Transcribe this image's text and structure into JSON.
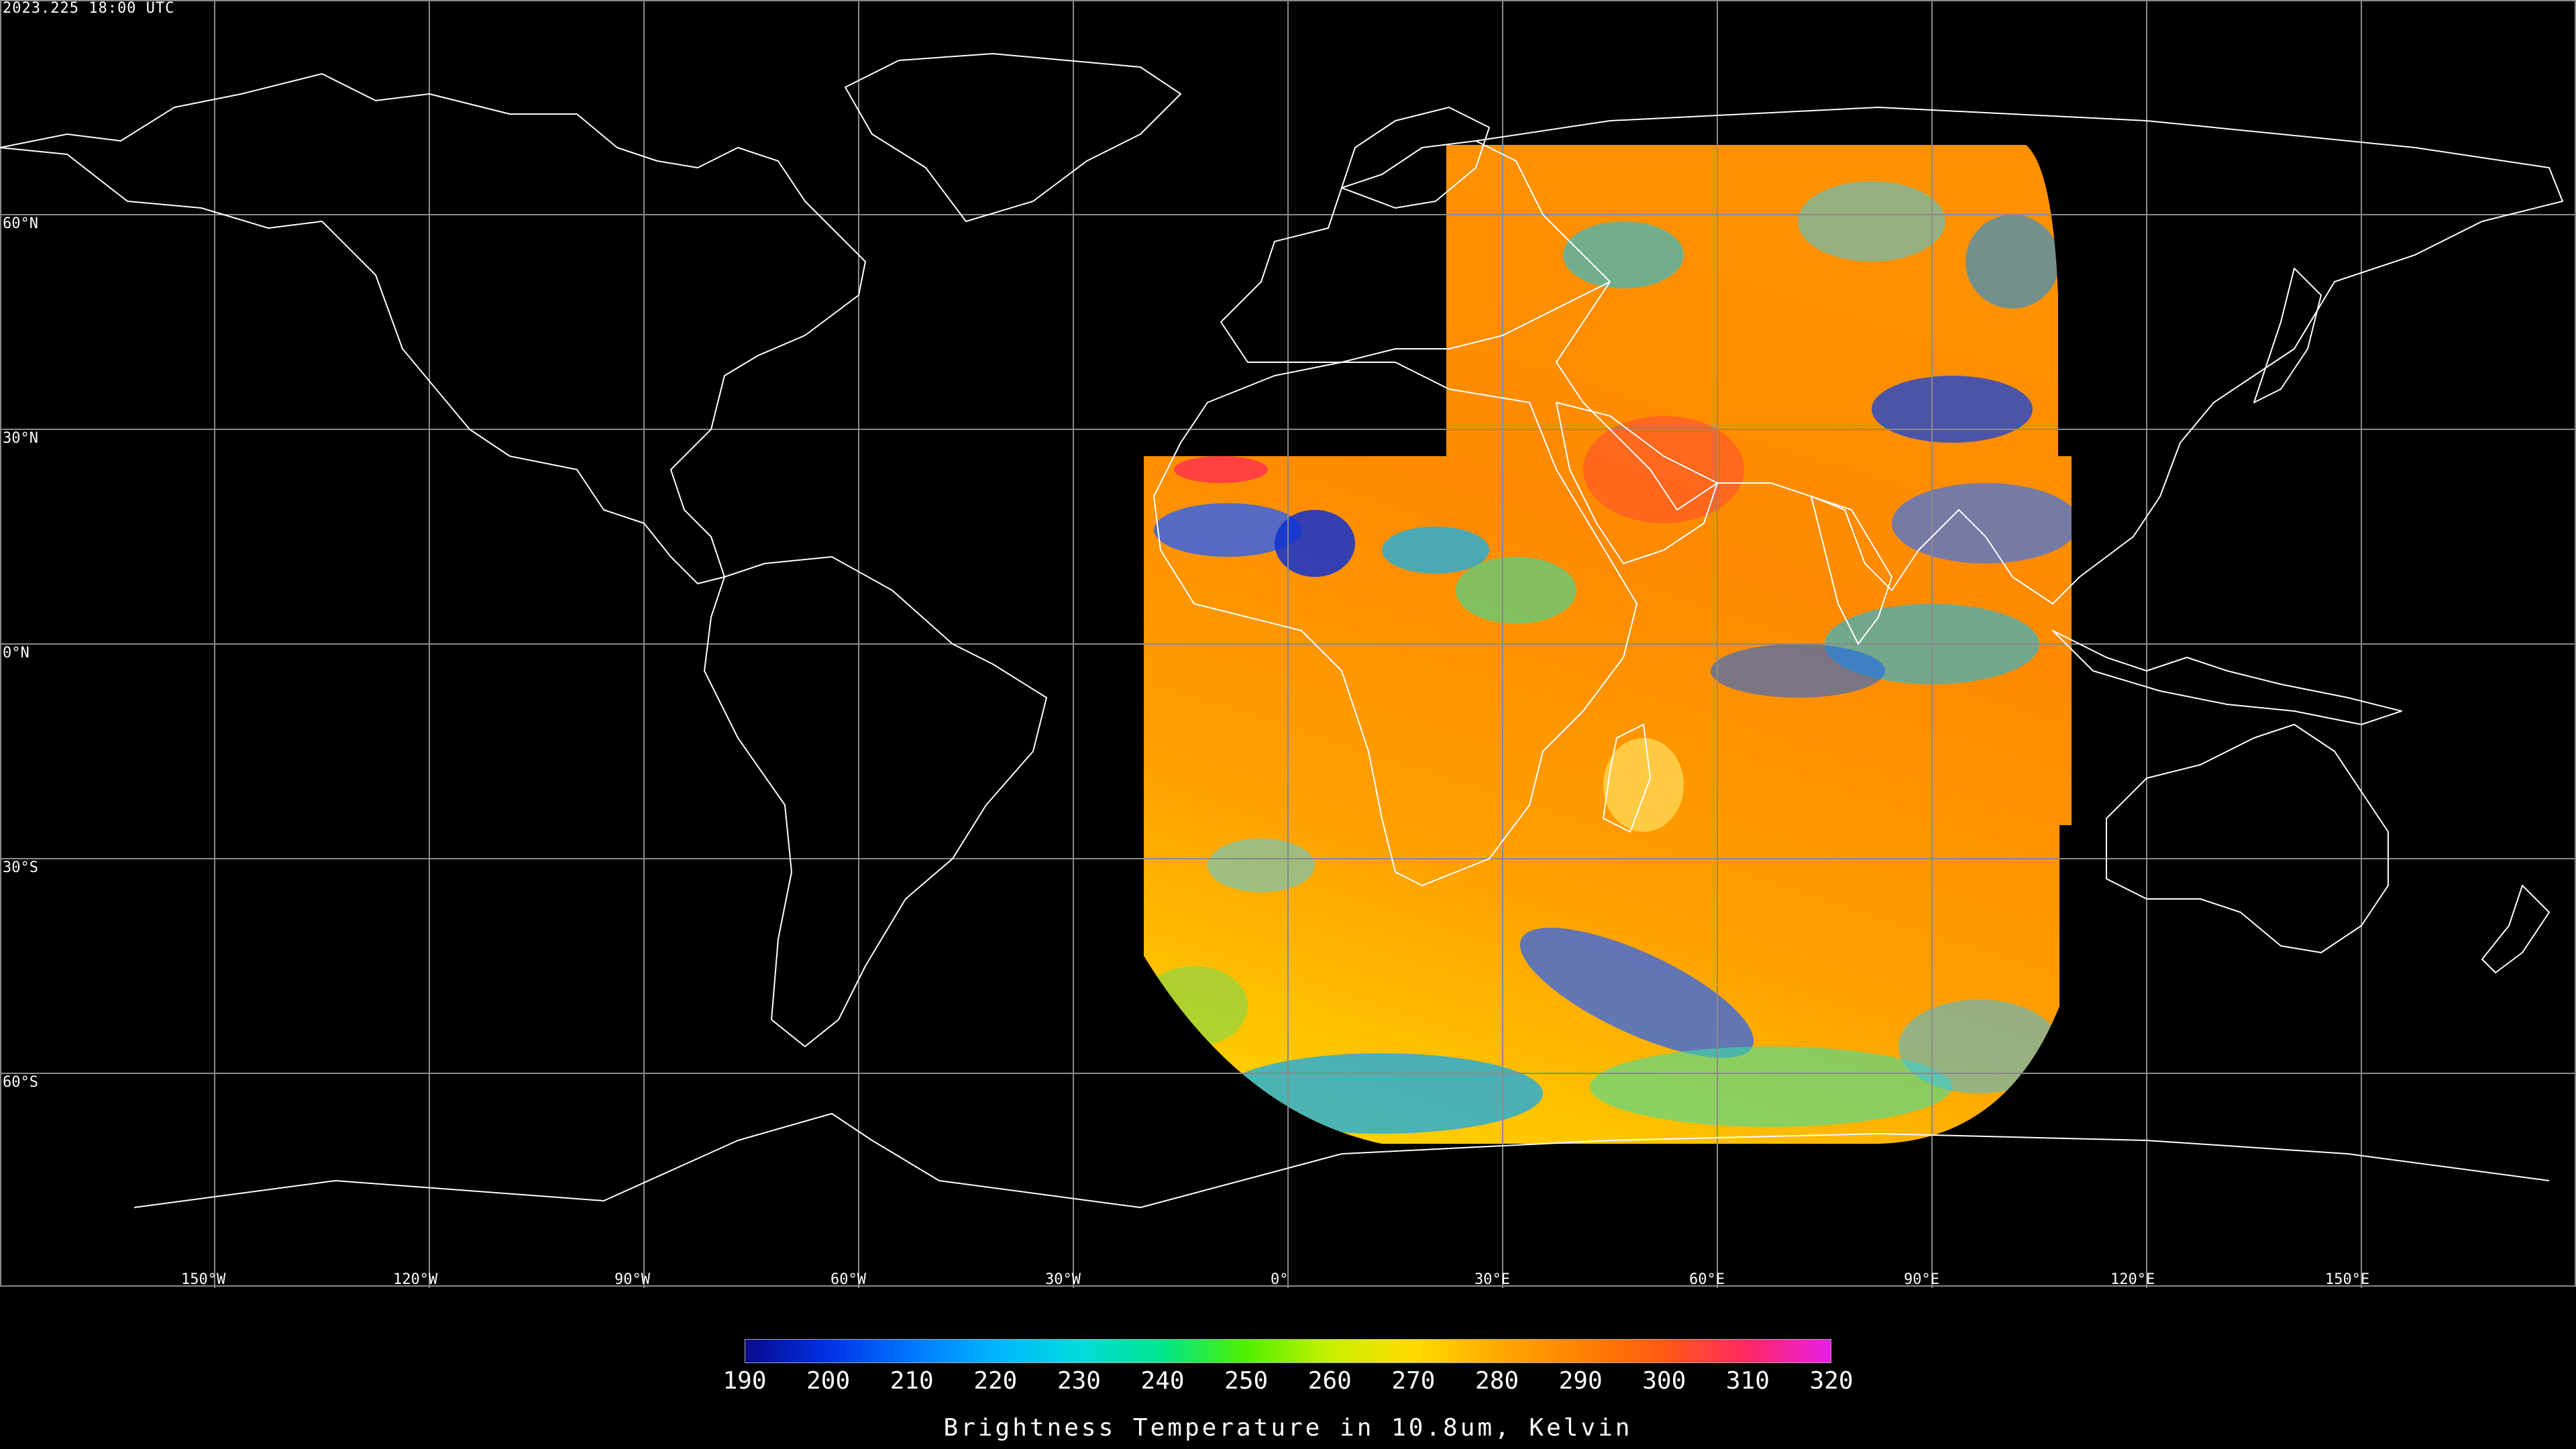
{
  "timestamp": "2023.225 18:00 UTC",
  "map": {
    "projection": "equirectangular",
    "lat_labels": [
      "60°N",
      "30°N",
      "0°N",
      "30°S",
      "60°S"
    ],
    "lon_labels": [
      "150°W",
      "120°W",
      "90°W",
      "60°W",
      "30°W",
      "0°",
      "30°E",
      "60°E",
      "90°E",
      "120°E",
      "150°E"
    ],
    "grid_color": "#8a8a8a",
    "coastline_color": "#ffffff",
    "background": "#000000"
  },
  "colorbar": {
    "title": "Brightness Temperature in 10.8um, Kelvin",
    "ticks": [
      "190",
      "200",
      "210",
      "220",
      "230",
      "240",
      "250",
      "260",
      "270",
      "280",
      "290",
      "300",
      "310",
      "320"
    ],
    "min": 190,
    "max": 320,
    "colors": [
      "#0a0a8c",
      "#0032e6",
      "#0078ff",
      "#00b4ff",
      "#00dcdc",
      "#00e68c",
      "#50f000",
      "#c8f000",
      "#ffdc00",
      "#ffaa00",
      "#ff8200",
      "#ff5a14",
      "#ff2864",
      "#e61ee6"
    ]
  }
}
